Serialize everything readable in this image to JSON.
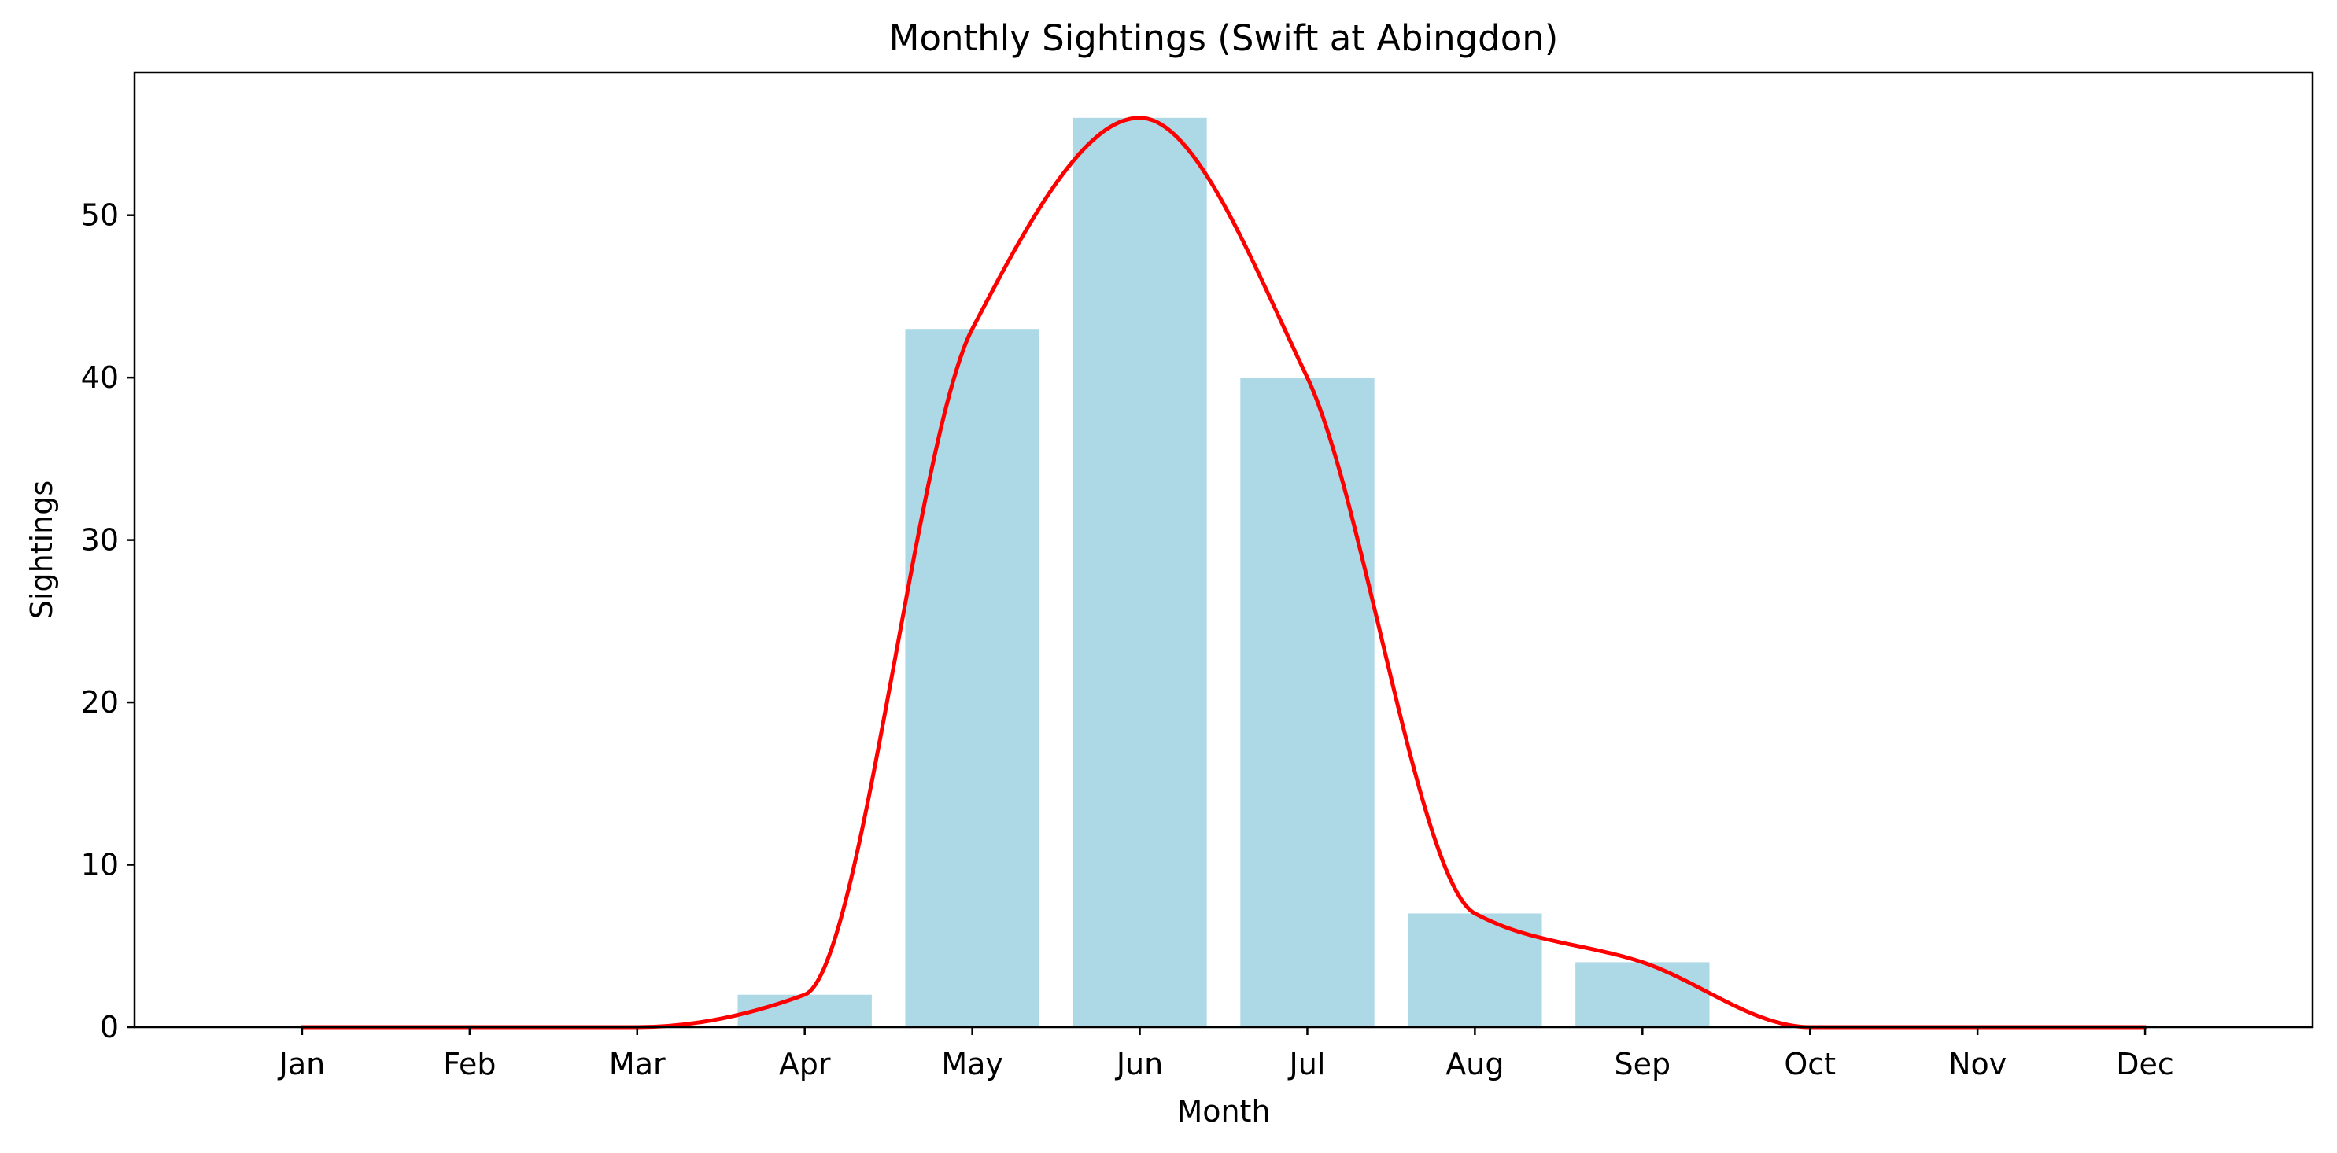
{
  "chart_data": {
    "type": "bar",
    "title": "Monthly Sightings (Swift at Abingdon)",
    "xlabel": "Month",
    "ylabel": "Sightings",
    "categories": [
      "Jan",
      "Feb",
      "Mar",
      "Apr",
      "May",
      "Jun",
      "Jul",
      "Aug",
      "Sep",
      "Oct",
      "Nov",
      "Dec"
    ],
    "series": [
      {
        "type": "bar",
        "values": [
          0,
          0,
          0,
          2,
          43,
          56,
          40,
          7,
          4,
          0,
          0,
          0
        ],
        "color": "#add8e6"
      },
      {
        "type": "line",
        "smooth": true,
        "values": [
          0,
          0,
          0,
          2,
          43,
          56,
          40,
          7,
          4,
          0,
          0,
          0
        ],
        "color": "#ff0000"
      }
    ],
    "ylim": [
      0,
      58.8
    ],
    "yticks": [
      0,
      10,
      20,
      30,
      40,
      50
    ],
    "grid": false,
    "legend": "none"
  }
}
